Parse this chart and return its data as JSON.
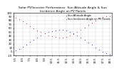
{
  "title": "Solar PV/Inverter Performance  Sun Altitude Angle & Sun Incidence Angle on PV Panels",
  "background_color": "#ffffff",
  "grid_color": "#aaaaaa",
  "series": [
    {
      "label": "Sun Altitude Angle",
      "color": "#0000cc",
      "x": [
        5.5,
        6.0,
        6.5,
        7.0,
        7.5,
        8.0,
        8.5,
        9.0,
        9.5,
        10.0,
        10.5,
        11.0,
        11.5,
        12.0,
        12.5,
        13.0,
        13.5,
        14.0,
        14.5,
        15.0,
        15.5,
        16.0,
        16.5,
        17.0,
        17.5,
        18.0,
        18.5
      ],
      "y": [
        2,
        7,
        12,
        18,
        24,
        30,
        36,
        41,
        46,
        50,
        53,
        55,
        56,
        56,
        54,
        51,
        47,
        42,
        36,
        30,
        23,
        17,
        10,
        5,
        0,
        -4,
        -7
      ]
    },
    {
      "label": "Sun Incidence Angle on PV Panels",
      "color": "#cc0000",
      "x": [
        5.5,
        6.0,
        6.5,
        7.0,
        7.5,
        8.0,
        8.5,
        9.0,
        9.5,
        10.0,
        10.5,
        11.0,
        11.5,
        12.0,
        12.5,
        13.0,
        13.5,
        14.0,
        14.5,
        15.0,
        15.5,
        16.0,
        16.5,
        17.0,
        17.5,
        18.0,
        18.5
      ],
      "y": [
        88,
        83,
        78,
        72,
        66,
        60,
        55,
        50,
        46,
        42,
        39,
        37,
        36,
        36,
        38,
        41,
        45,
        50,
        56,
        62,
        69,
        74,
        80,
        85,
        89,
        90,
        90
      ]
    }
  ],
  "xlim": [
    5.25,
    18.75
  ],
  "ylim": [
    -10,
    100
  ],
  "xticks": [
    5.5,
    6.5,
    7.5,
    8.5,
    9.5,
    10.5,
    11.5,
    12.5,
    13.5,
    14.5,
    15.5,
    16.5,
    17.5,
    18.5
  ],
  "yticks": [
    -10,
    0,
    10,
    20,
    30,
    40,
    50,
    60,
    70,
    80,
    90,
    100
  ],
  "tick_fontsize": 2.8,
  "title_fontsize": 3.2,
  "legend_fontsize": 2.5,
  "dot_size": 1.5
}
